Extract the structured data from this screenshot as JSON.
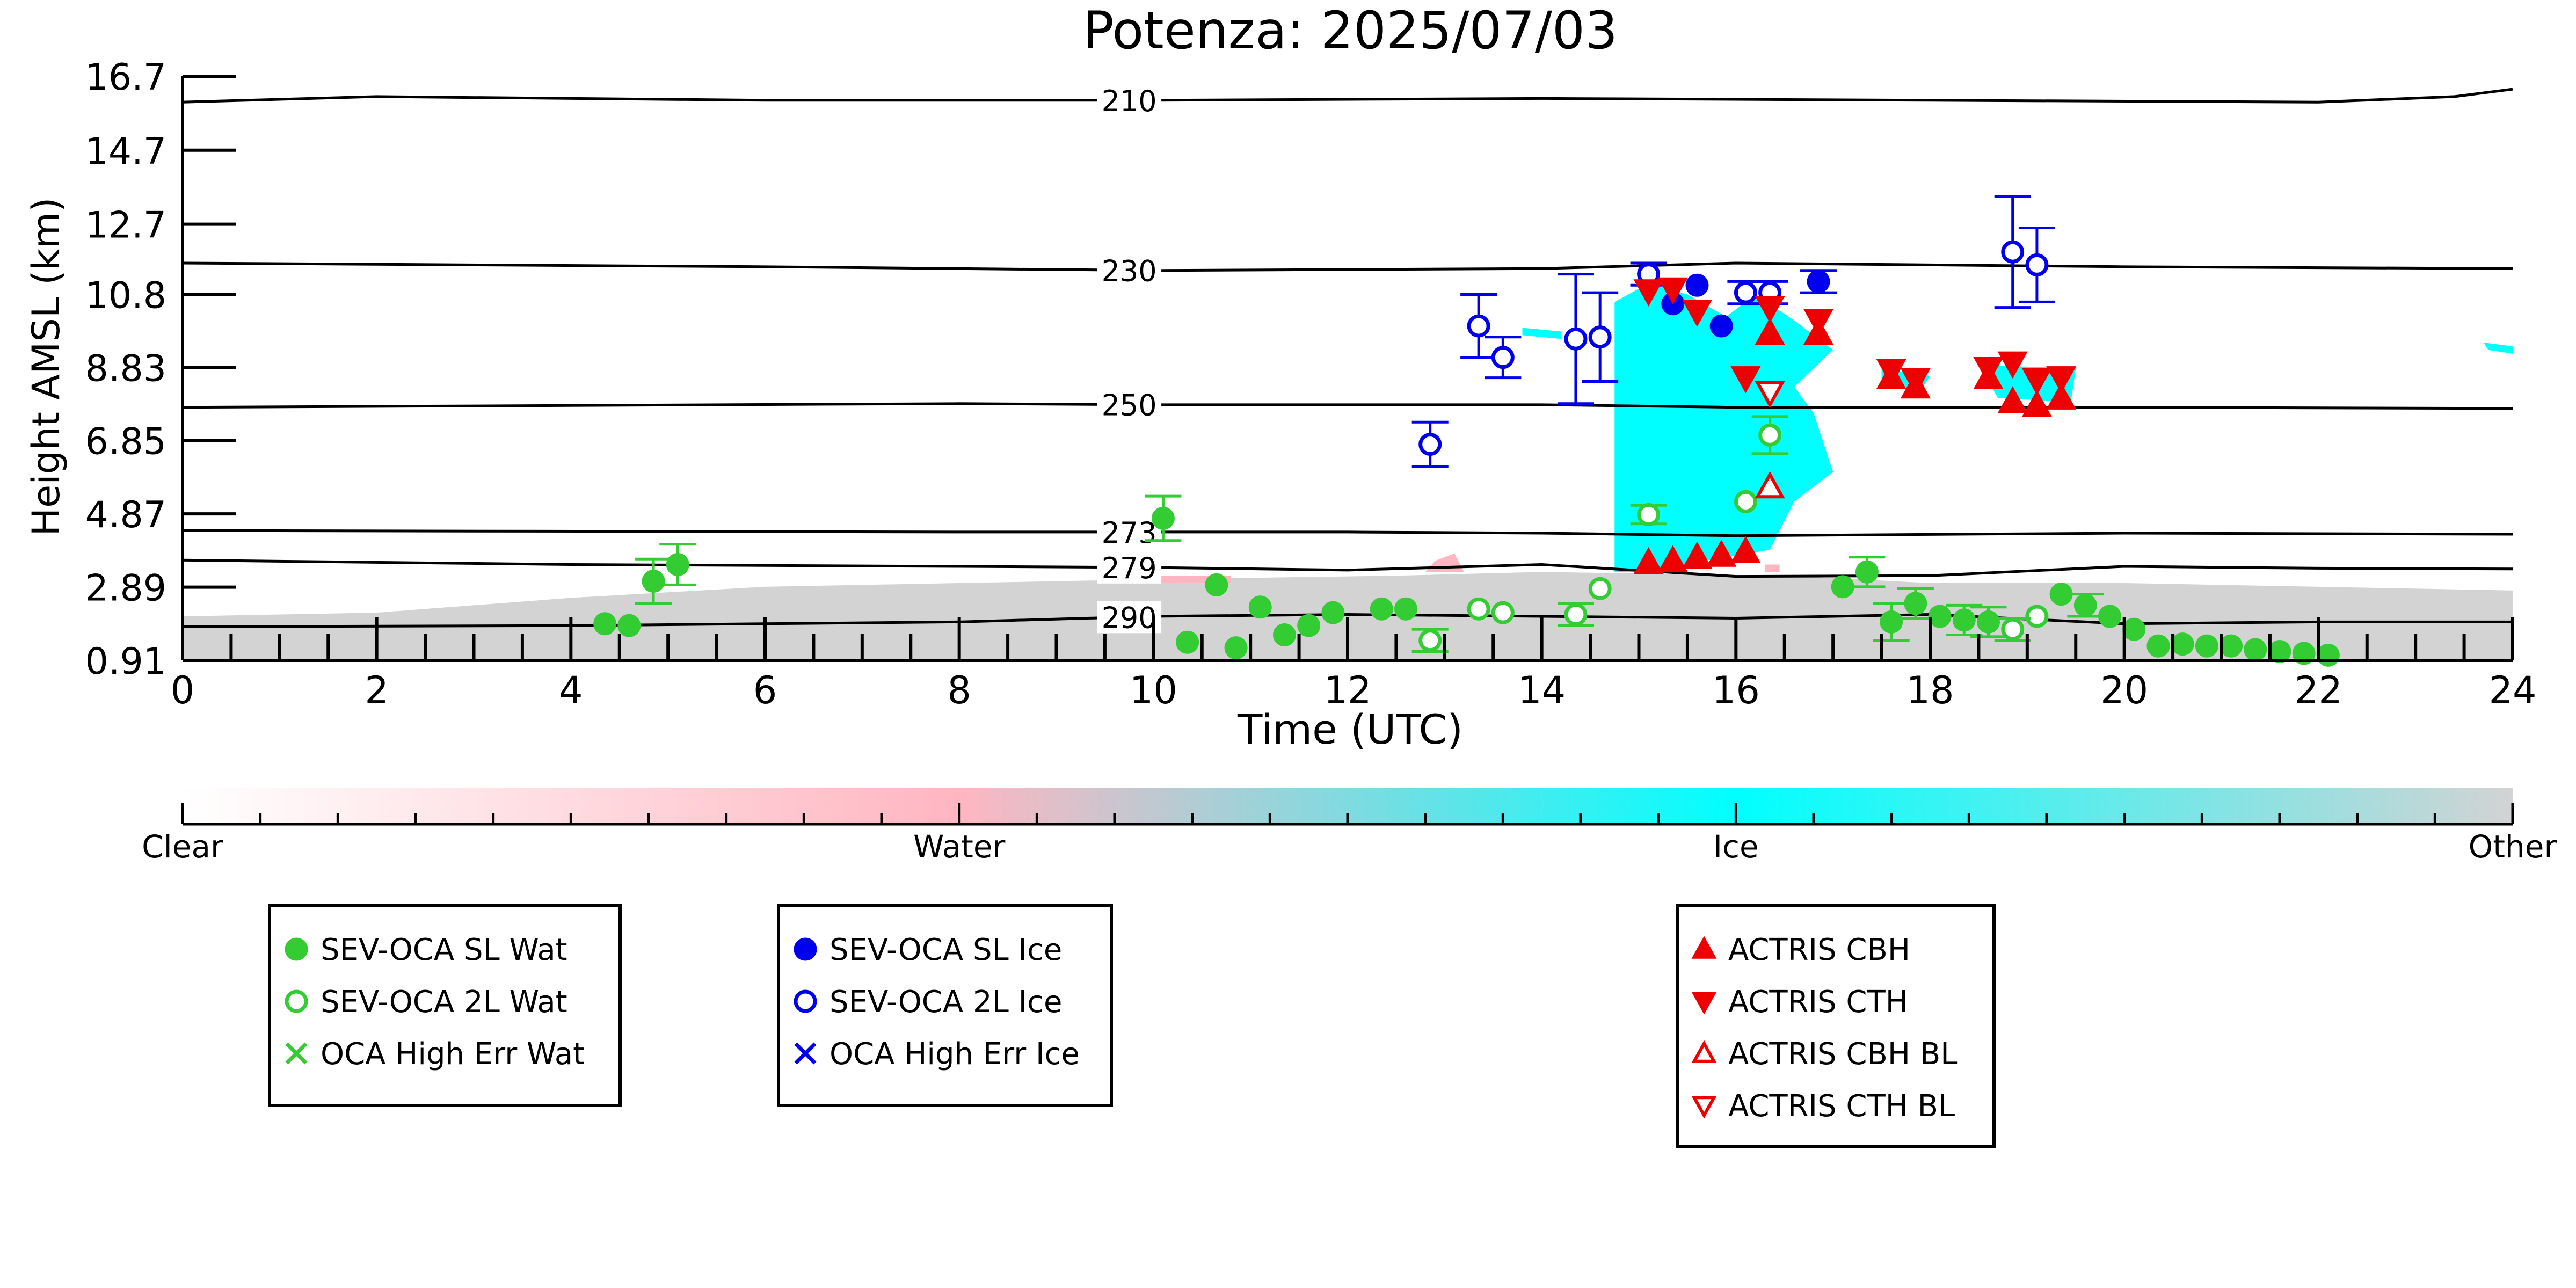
{
  "chart_data": {
    "type": "scatter",
    "title": "Potenza: 2025/07/03",
    "xlabel": "Time (UTC)",
    "ylabel": "Height AMSL (km)",
    "xlim": [
      0,
      24
    ],
    "ylim": [
      0.91,
      16.7
    ],
    "x_ticks": [
      "0",
      "2",
      "4",
      "6",
      "8",
      "10",
      "12",
      "14",
      "16",
      "18",
      "20",
      "22",
      "24"
    ],
    "y_ticks": [
      "0.91",
      "2.89",
      "4.87",
      "6.85",
      "8.83",
      "10.8",
      "12.7",
      "14.7",
      "16.7"
    ],
    "y_tick_values": [
      0.91,
      2.89,
      4.87,
      6.85,
      8.83,
      10.8,
      12.7,
      14.7,
      16.7
    ],
    "colorbar": {
      "labels": [
        "Clear",
        "Water",
        "Ice",
        "Other"
      ],
      "colors": [
        "#ffffff",
        "#ffb6c1",
        "#00ffff",
        "#d3d3d3"
      ]
    },
    "isotherms": [
      {
        "label": "210",
        "points": [
          [
            0,
            16.0
          ],
          [
            2,
            16.15
          ],
          [
            6,
            16.05
          ],
          [
            10,
            16.05
          ],
          [
            14,
            16.1
          ],
          [
            18,
            16.05
          ],
          [
            22,
            16.0
          ],
          [
            23.4,
            16.15
          ],
          [
            24,
            16.35
          ]
        ]
      },
      {
        "label": "230",
        "points": [
          [
            0,
            11.65
          ],
          [
            6,
            11.55
          ],
          [
            10,
            11.45
          ],
          [
            14,
            11.5
          ],
          [
            16,
            11.65
          ],
          [
            20,
            11.55
          ],
          [
            24,
            11.5
          ]
        ]
      },
      {
        "label": "250",
        "points": [
          [
            0,
            7.75
          ],
          [
            4,
            7.8
          ],
          [
            8,
            7.85
          ],
          [
            10,
            7.82
          ],
          [
            14,
            7.82
          ],
          [
            16,
            7.75
          ],
          [
            20,
            7.75
          ],
          [
            24,
            7.72
          ]
        ]
      },
      {
        "label": "273",
        "points": [
          [
            0,
            4.42
          ],
          [
            8,
            4.38
          ],
          [
            12,
            4.38
          ],
          [
            14,
            4.35
          ],
          [
            16,
            4.28
          ],
          [
            20,
            4.35
          ],
          [
            24,
            4.32
          ]
        ]
      },
      {
        "label": "279",
        "points": [
          [
            0,
            3.62
          ],
          [
            4,
            3.5
          ],
          [
            8,
            3.45
          ],
          [
            10,
            3.42
          ],
          [
            12,
            3.35
          ],
          [
            14,
            3.5
          ],
          [
            16,
            3.18
          ],
          [
            18,
            3.2
          ],
          [
            20,
            3.45
          ],
          [
            22,
            3.4
          ],
          [
            24,
            3.38
          ]
        ]
      },
      {
        "label": "290",
        "points": [
          [
            0,
            1.82
          ],
          [
            4,
            1.85
          ],
          [
            8,
            1.95
          ],
          [
            10,
            2.1
          ],
          [
            12,
            2.15
          ],
          [
            14,
            2.1
          ],
          [
            16,
            2.05
          ],
          [
            18,
            2.15
          ],
          [
            20,
            1.9
          ],
          [
            22,
            1.95
          ],
          [
            24,
            1.95
          ]
        ]
      }
    ],
    "series": [
      {
        "name": "SEV-OCA SL Wat",
        "color": "#33cc33",
        "marker": "filled-circle",
        "points": [
          [
            4.35,
            1.9
          ],
          [
            4.6,
            1.85
          ],
          [
            4.85,
            3.05
          ],
          [
            5.1,
            3.5
          ],
          [
            10.1,
            4.75
          ],
          [
            10.35,
            1.4
          ],
          [
            10.65,
            2.95
          ],
          [
            10.85,
            1.25
          ],
          [
            11.1,
            2.35
          ],
          [
            11.35,
            1.6
          ],
          [
            11.6,
            1.85
          ],
          [
            11.85,
            2.2
          ],
          [
            12.35,
            2.3
          ],
          [
            12.6,
            2.3
          ],
          [
            17.1,
            2.9
          ],
          [
            17.35,
            3.3
          ],
          [
            17.6,
            1.95
          ],
          [
            17.85,
            2.45
          ],
          [
            18.1,
            2.1
          ],
          [
            18.35,
            2.0
          ],
          [
            18.6,
            1.95
          ],
          [
            19.35,
            2.7
          ],
          [
            19.6,
            2.4
          ],
          [
            19.85,
            2.1
          ],
          [
            20.1,
            1.75
          ],
          [
            20.35,
            1.3
          ],
          [
            20.6,
            1.35
          ],
          [
            20.85,
            1.3
          ],
          [
            21.1,
            1.3
          ],
          [
            21.35,
            1.2
          ],
          [
            21.6,
            1.15
          ],
          [
            21.85,
            1.1
          ],
          [
            22.1,
            1.05
          ]
        ],
        "errors": [
          null,
          null,
          0.6,
          0.55,
          0.6,
          null,
          null,
          null,
          null,
          null,
          null,
          null,
          null,
          null,
          null,
          0.4,
          0.5,
          0.4,
          null,
          0.4,
          0.4,
          null,
          0.3,
          null,
          null,
          null,
          null,
          null,
          null,
          null,
          null,
          null,
          null
        ]
      },
      {
        "name": "SEV-OCA 2L Wat",
        "color": "#33cc33",
        "marker": "open-circle",
        "points": [
          [
            12.85,
            1.45
          ],
          [
            13.35,
            2.3
          ],
          [
            13.6,
            2.2
          ],
          [
            14.35,
            2.15
          ],
          [
            14.6,
            2.85
          ],
          [
            15.1,
            4.85
          ],
          [
            16.1,
            5.2
          ],
          [
            16.35,
            7.0
          ],
          [
            19.1,
            2.1
          ],
          [
            18.85,
            1.75
          ]
        ],
        "errors": [
          0.3,
          null,
          null,
          0.3,
          null,
          0.25,
          null,
          0.5,
          null,
          0.3
        ]
      },
      {
        "name": "OCA High Err Wat",
        "color": "#33cc33",
        "marker": "x",
        "points": []
      },
      {
        "name": "SEV-OCA SL Ice",
        "color": "#0000ee",
        "marker": "filled-circle",
        "points": [
          [
            15.35,
            10.55
          ],
          [
            15.6,
            11.05
          ],
          [
            15.85,
            9.95
          ],
          [
            16.85,
            11.15
          ]
        ],
        "errors": [
          null,
          null,
          null,
          0.3
        ]
      },
      {
        "name": "SEV-OCA 2L Ice",
        "color": "#0000ee",
        "marker": "open-circle",
        "points": [
          [
            12.85,
            6.75
          ],
          [
            13.35,
            9.95
          ],
          [
            13.6,
            9.1
          ],
          [
            14.35,
            9.6
          ],
          [
            14.6,
            9.65
          ],
          [
            15.1,
            11.35
          ],
          [
            16.1,
            10.85
          ],
          [
            16.35,
            10.85
          ],
          [
            18.85,
            11.95
          ],
          [
            19.1,
            11.6
          ]
        ],
        "errors": [
          0.6,
          0.85,
          0.55,
          1.75,
          1.2,
          0.3,
          0.3,
          0.3,
          1.5,
          1.0
        ]
      },
      {
        "name": "OCA High Err Ice",
        "color": "#0000ee",
        "marker": "x",
        "points": []
      },
      {
        "name": "ACTRIS CBH",
        "color": "#ee0000",
        "marker": "filled-triangle-up",
        "points": [
          [
            15.1,
            3.55
          ],
          [
            15.35,
            3.6
          ],
          [
            15.6,
            3.7
          ],
          [
            15.85,
            3.75
          ],
          [
            16.1,
            3.85
          ],
          [
            16.35,
            9.75
          ],
          [
            16.85,
            9.75
          ],
          [
            17.6,
            8.55
          ],
          [
            17.85,
            8.3
          ],
          [
            18.6,
            8.55
          ],
          [
            18.85,
            7.9
          ],
          [
            19.1,
            7.8
          ],
          [
            19.35,
            8.0
          ]
        ]
      },
      {
        "name": "ACTRIS CTH",
        "color": "#ee0000",
        "marker": "filled-triangle-down",
        "points": [
          [
            15.1,
            10.9
          ],
          [
            15.35,
            10.95
          ],
          [
            15.6,
            10.35
          ],
          [
            16.1,
            8.55
          ],
          [
            16.35,
            10.45
          ],
          [
            16.85,
            10.1
          ],
          [
            17.6,
            8.75
          ],
          [
            17.85,
            8.5
          ],
          [
            18.6,
            8.8
          ],
          [
            18.85,
            8.95
          ],
          [
            19.1,
            8.5
          ],
          [
            19.35,
            8.55
          ]
        ]
      },
      {
        "name": "ACTRIS CBH BL",
        "color": "#ee0000",
        "marker": "open-triangle-up",
        "points": [
          [
            16.35,
            5.6
          ]
        ]
      },
      {
        "name": "ACTRIS CTH BL",
        "color": "#ee0000",
        "marker": "open-triangle-down",
        "points": [
          [
            16.35,
            8.15
          ]
        ]
      }
    ],
    "curtain_regions": [
      {
        "class": "Other",
        "color": "#d3d3d3",
        "points": [
          [
            0,
            0.91
          ],
          [
            0,
            2.1
          ],
          [
            2,
            2.2
          ],
          [
            4,
            2.6
          ],
          [
            6,
            2.9
          ],
          [
            8,
            3.0
          ],
          [
            10,
            3.1
          ],
          [
            12.5,
            3.2
          ],
          [
            14,
            3.3
          ],
          [
            16.5,
            3.2
          ],
          [
            18,
            3.0
          ],
          [
            20,
            3.0
          ],
          [
            22,
            2.9
          ],
          [
            24,
            2.8
          ],
          [
            24,
            0.91
          ]
        ]
      },
      {
        "class": "Ice",
        "color": "#00ffff",
        "points": [
          [
            14.75,
            3.3
          ],
          [
            14.75,
            10.6
          ],
          [
            15.1,
            11.1
          ],
          [
            15.5,
            10.8
          ],
          [
            15.9,
            10.2
          ],
          [
            16.2,
            10.8
          ],
          [
            16.6,
            10.1
          ],
          [
            17.0,
            9.3
          ],
          [
            16.6,
            8.3
          ],
          [
            16.8,
            7.6
          ],
          [
            17.0,
            6.0
          ],
          [
            16.6,
            5.2
          ],
          [
            16.35,
            3.9
          ],
          [
            15.0,
            3.3
          ]
        ]
      },
      {
        "class": "Ice",
        "color": "#00ffff",
        "points": [
          [
            18.5,
            8.9
          ],
          [
            19.5,
            8.8
          ],
          [
            19.45,
            7.9
          ],
          [
            18.7,
            8.0
          ]
        ]
      },
      {
        "class": "Ice",
        "color": "#00ffff",
        "points": [
          [
            17.5,
            8.8
          ],
          [
            18.0,
            8.6
          ],
          [
            17.9,
            8.2
          ],
          [
            17.5,
            8.5
          ]
        ]
      },
      {
        "class": "Ice",
        "color": "#00ffff",
        "points": [
          [
            13.8,
            9.9
          ],
          [
            14.2,
            9.8
          ],
          [
            14.2,
            9.6
          ],
          [
            13.8,
            9.7
          ]
        ]
      },
      {
        "class": "Ice",
        "color": "#00ffff",
        "points": [
          [
            23.7,
            9.5
          ],
          [
            24.0,
            9.4
          ],
          [
            24.0,
            9.2
          ],
          [
            23.75,
            9.3
          ]
        ]
      },
      {
        "class": "Water",
        "color": "#ffb6c1",
        "points": [
          [
            12.8,
            3.3
          ],
          [
            13.2,
            3.3
          ],
          [
            13.1,
            3.8
          ],
          [
            12.9,
            3.6
          ]
        ]
      },
      {
        "class": "Water",
        "color": "#ffb6c1",
        "points": [
          [
            16.3,
            3.3
          ],
          [
            16.45,
            3.3
          ],
          [
            16.45,
            3.5
          ],
          [
            16.3,
            3.5
          ]
        ]
      },
      {
        "class": "Water",
        "color": "#ffb6c1",
        "points": [
          [
            10.0,
            3.0
          ],
          [
            10.8,
            3.0
          ],
          [
            10.8,
            3.2
          ],
          [
            10.0,
            3.2
          ]
        ]
      }
    ]
  }
}
